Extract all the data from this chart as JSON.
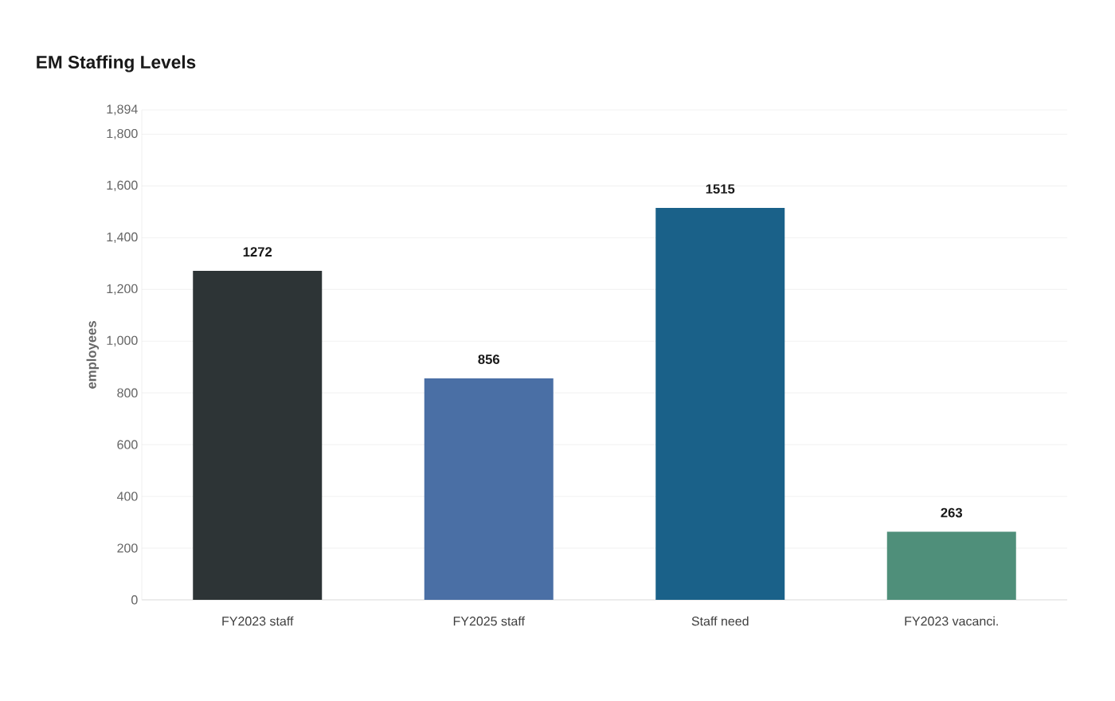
{
  "chart_data": {
    "type": "bar",
    "title": "EM Staffing Levels",
    "ylabel": "employees",
    "categories": [
      "FY2023 staff",
      "FY2025 staff",
      "Staff need",
      "FY2023 vacanci."
    ],
    "values": [
      1272,
      856,
      1515,
      263
    ],
    "colors": [
      "#2d3436",
      "#4a6fa5",
      "#1a6189",
      "#4f8f7a"
    ],
    "ylim": [
      0,
      1894
    ],
    "yticks": [
      0,
      200,
      400,
      600,
      800,
      {
        "value": 1000,
        "label": "1,000"
      },
      {
        "value": 1200,
        "label": "1,200"
      },
      {
        "value": 1400,
        "label": "1,400"
      },
      {
        "value": 1600,
        "label": "1,600"
      },
      {
        "value": 1800,
        "label": "1,800"
      },
      {
        "value": 1894,
        "label": "1,894"
      }
    ],
    "grid": "y",
    "data_labels": true
  }
}
